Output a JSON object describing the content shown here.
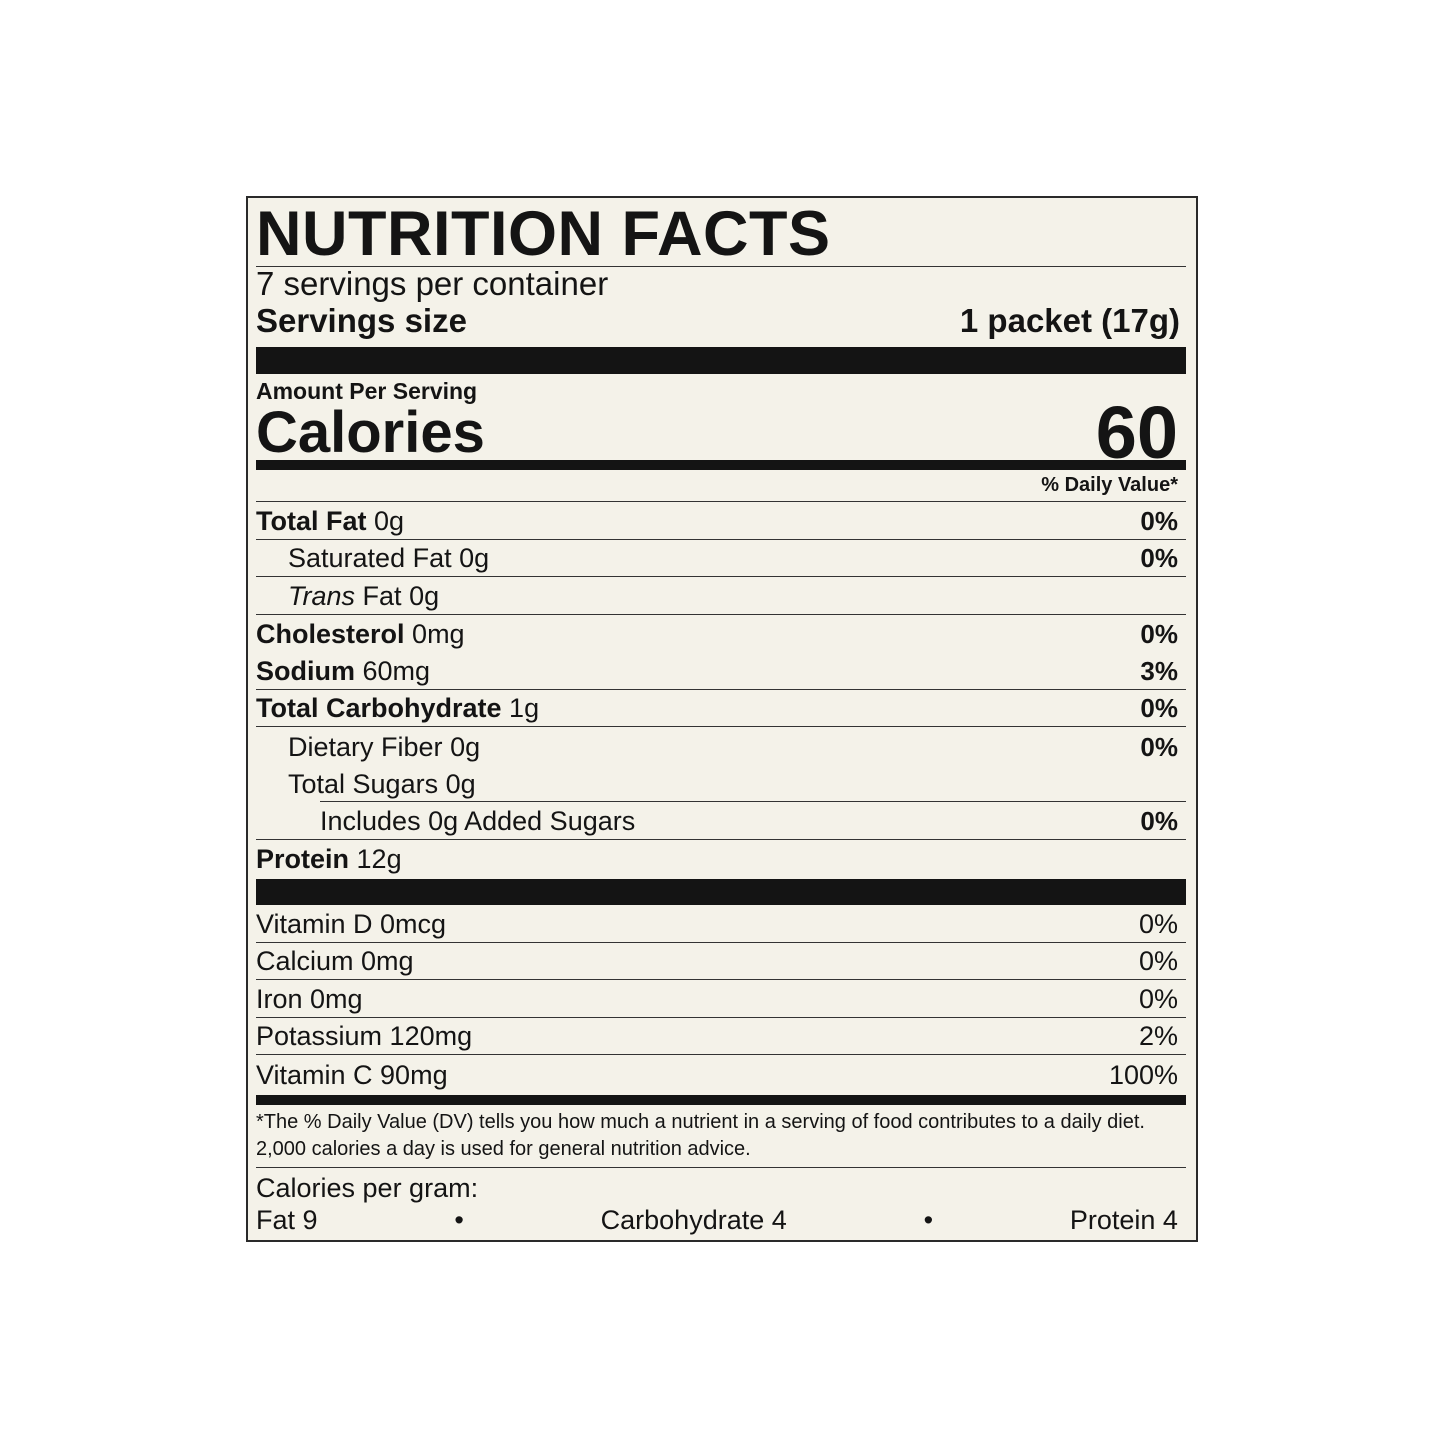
{
  "title": "NUTRITION FACTS",
  "servings_per_container": "7 servings per container",
  "serving_size_label": "Servings size",
  "serving_size_value": "1 packet (17g)",
  "amount_per_serving": "Amount Per Serving",
  "calories_label": "Calories",
  "calories_value": "60",
  "daily_value_header": "% Daily Value*",
  "nutrients": [
    {
      "name": "Total Fat",
      "amount": "0g",
      "dv": "0%"
    },
    {
      "name": "Saturated Fat",
      "amount": "0g",
      "dv": "0%"
    },
    {
      "name": "Trans",
      "name_suffix": "Fat",
      "amount": "0g",
      "dv": ""
    },
    {
      "name": "Cholesterol",
      "amount": "0mg",
      "dv": "0%"
    },
    {
      "name": "Sodium",
      "amount": "60mg",
      "dv": "3%"
    },
    {
      "name": "Total Carbohydrate",
      "amount": "1g",
      "dv": "0%"
    },
    {
      "name": "Dietary Fiber",
      "amount": "0g",
      "dv": "0%"
    },
    {
      "name": "Total Sugars",
      "amount": "0g",
      "dv": ""
    },
    {
      "name": "Includes 0g Added Sugars",
      "amount": "",
      "dv": "0%"
    },
    {
      "name": "Protein",
      "amount": "12g",
      "dv": ""
    }
  ],
  "micronutrients": [
    {
      "name": "Vitamin D 0mcg",
      "dv": "0%"
    },
    {
      "name": "Calcium 0mg",
      "dv": "0%"
    },
    {
      "name": "Iron 0mg",
      "dv": "0%"
    },
    {
      "name": "Potassium 120mg",
      "dv": "2%"
    },
    {
      "name": "Vitamin C 90mg",
      "dv": "100%"
    }
  ],
  "footnote": "*The % Daily Value (DV) tells you how much a nutrient in a serving of food contributes to a daily diet. 2,000 calories a day is used for general nutrition advice.",
  "calories_per_gram": {
    "label": "Calories per gram:",
    "fat": "Fat 9",
    "carbohydrate": "Carbohydrate 4",
    "protein": "Protein 4",
    "separator": "•"
  }
}
